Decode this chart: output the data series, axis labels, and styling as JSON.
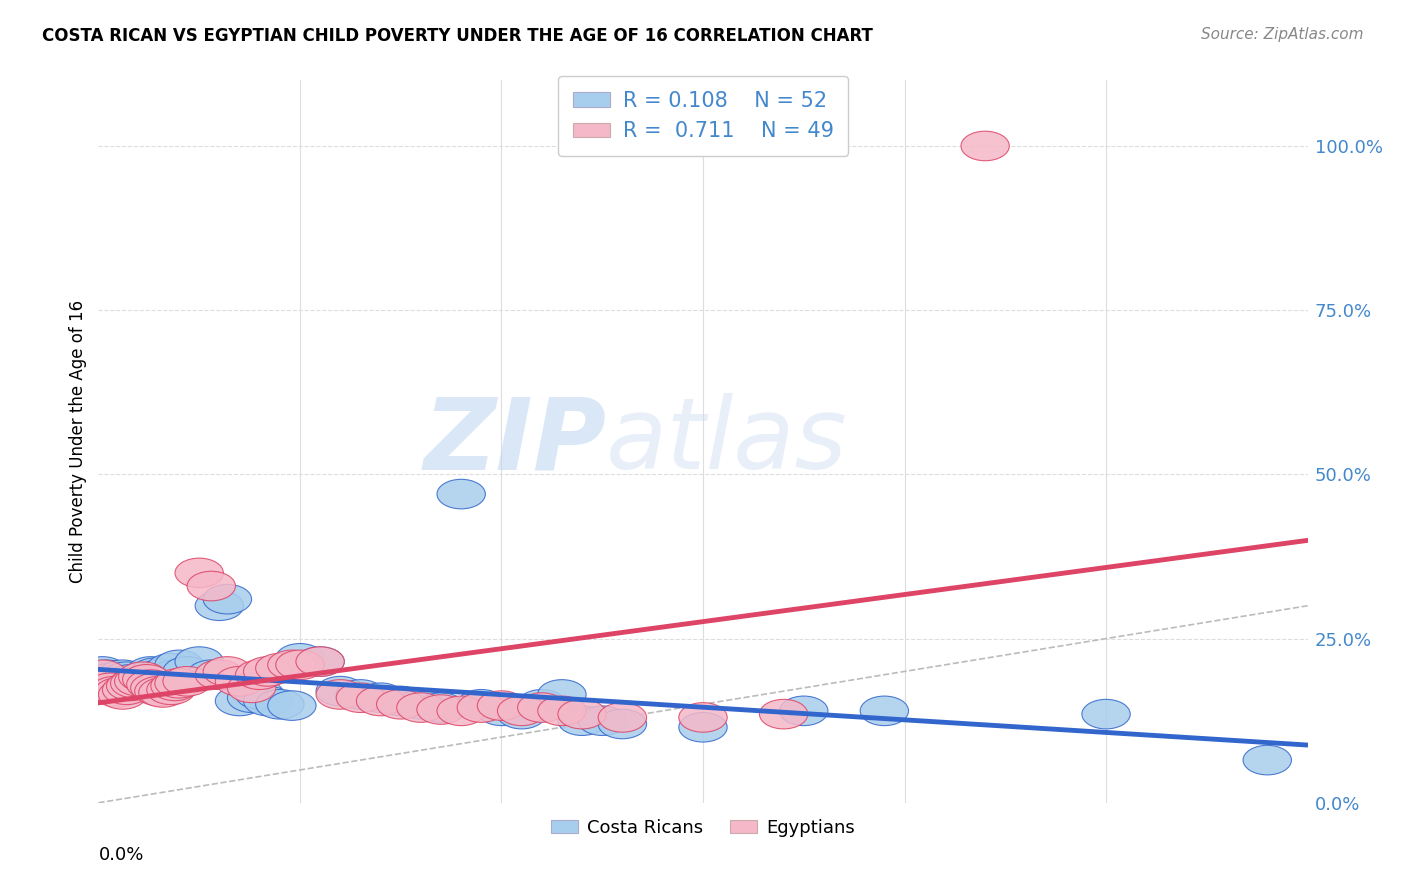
{
  "title": "COSTA RICAN VS EGYPTIAN CHILD POVERTY UNDER THE AGE OF 16 CORRELATION CHART",
  "source": "Source: ZipAtlas.com",
  "ylabel": "Child Poverty Under the Age of 16",
  "yaxis_labels": [
    "0.0%",
    "25.0%",
    "50.0%",
    "75.0%",
    "100.0%"
  ],
  "legend_labels": [
    "Costa Ricans",
    "Egyptians"
  ],
  "legend_R": [
    "0.108",
    "0.711"
  ],
  "legend_N": [
    "52",
    "49"
  ],
  "blue_color": "#A8CEED",
  "pink_color": "#F5B8C8",
  "blue_line_color": "#3366CC",
  "pink_line_color": "#DD4466",
  "text_color": "#4488CC",
  "watermark_zip": "ZIP",
  "watermark_atlas": "atlas",
  "cr_points": [
    [
      0.001,
      0.2
    ],
    [
      0.002,
      0.195
    ],
    [
      0.003,
      0.19
    ],
    [
      0.004,
      0.185
    ],
    [
      0.005,
      0.18
    ],
    [
      0.006,
      0.195
    ],
    [
      0.007,
      0.192
    ],
    [
      0.008,
      0.188
    ],
    [
      0.009,
      0.182
    ],
    [
      0.01,
      0.178
    ],
    [
      0.011,
      0.175
    ],
    [
      0.012,
      0.185
    ],
    [
      0.013,
      0.2
    ],
    [
      0.014,
      0.198
    ],
    [
      0.015,
      0.195
    ],
    [
      0.016,
      0.188
    ],
    [
      0.018,
      0.205
    ],
    [
      0.019,
      0.195
    ],
    [
      0.02,
      0.21
    ],
    [
      0.022,
      0.2
    ],
    [
      0.025,
      0.215
    ],
    [
      0.028,
      0.195
    ],
    [
      0.03,
      0.3
    ],
    [
      0.032,
      0.31
    ],
    [
      0.035,
      0.155
    ],
    [
      0.038,
      0.16
    ],
    [
      0.04,
      0.165
    ],
    [
      0.042,
      0.155
    ],
    [
      0.045,
      0.15
    ],
    [
      0.048,
      0.148
    ],
    [
      0.05,
      0.22
    ],
    [
      0.055,
      0.215
    ],
    [
      0.06,
      0.17
    ],
    [
      0.065,
      0.165
    ],
    [
      0.07,
      0.16
    ],
    [
      0.075,
      0.155
    ],
    [
      0.08,
      0.15
    ],
    [
      0.085,
      0.145
    ],
    [
      0.09,
      0.47
    ],
    [
      0.095,
      0.15
    ],
    [
      0.1,
      0.14
    ],
    [
      0.105,
      0.135
    ],
    [
      0.11,
      0.15
    ],
    [
      0.115,
      0.165
    ],
    [
      0.12,
      0.125
    ],
    [
      0.125,
      0.125
    ],
    [
      0.13,
      0.12
    ],
    [
      0.15,
      0.115
    ],
    [
      0.175,
      0.14
    ],
    [
      0.195,
      0.14
    ],
    [
      0.25,
      0.135
    ],
    [
      0.29,
      0.065
    ]
  ],
  "eg_points": [
    [
      0.001,
      0.195
    ],
    [
      0.002,
      0.18
    ],
    [
      0.003,
      0.175
    ],
    [
      0.004,
      0.17
    ],
    [
      0.005,
      0.168
    ],
    [
      0.006,
      0.165
    ],
    [
      0.007,
      0.172
    ],
    [
      0.008,
      0.178
    ],
    [
      0.009,
      0.182
    ],
    [
      0.01,
      0.185
    ],
    [
      0.011,
      0.192
    ],
    [
      0.012,
      0.188
    ],
    [
      0.013,
      0.18
    ],
    [
      0.014,
      0.175
    ],
    [
      0.015,
      0.17
    ],
    [
      0.016,
      0.168
    ],
    [
      0.018,
      0.172
    ],
    [
      0.019,
      0.178
    ],
    [
      0.02,
      0.182
    ],
    [
      0.022,
      0.185
    ],
    [
      0.025,
      0.35
    ],
    [
      0.028,
      0.33
    ],
    [
      0.03,
      0.195
    ],
    [
      0.032,
      0.2
    ],
    [
      0.035,
      0.185
    ],
    [
      0.038,
      0.175
    ],
    [
      0.04,
      0.195
    ],
    [
      0.042,
      0.2
    ],
    [
      0.045,
      0.205
    ],
    [
      0.048,
      0.21
    ],
    [
      0.05,
      0.21
    ],
    [
      0.055,
      0.215
    ],
    [
      0.06,
      0.165
    ],
    [
      0.065,
      0.16
    ],
    [
      0.07,
      0.155
    ],
    [
      0.075,
      0.15
    ],
    [
      0.08,
      0.145
    ],
    [
      0.085,
      0.142
    ],
    [
      0.09,
      0.14
    ],
    [
      0.095,
      0.145
    ],
    [
      0.1,
      0.148
    ],
    [
      0.105,
      0.14
    ],
    [
      0.11,
      0.145
    ],
    [
      0.115,
      0.14
    ],
    [
      0.12,
      0.135
    ],
    [
      0.13,
      0.13
    ],
    [
      0.15,
      0.13
    ],
    [
      0.17,
      0.135
    ],
    [
      0.22,
      1.0
    ]
  ],
  "diag_line_color": "#BBBBBB",
  "xlim": [
    0.0,
    0.3
  ],
  "ylim": [
    0.0,
    1.1
  ],
  "yticks": [
    0.0,
    0.25,
    0.5,
    0.75,
    1.0
  ],
  "xtick_lines": [
    0.05,
    0.1,
    0.15,
    0.2,
    0.25
  ]
}
